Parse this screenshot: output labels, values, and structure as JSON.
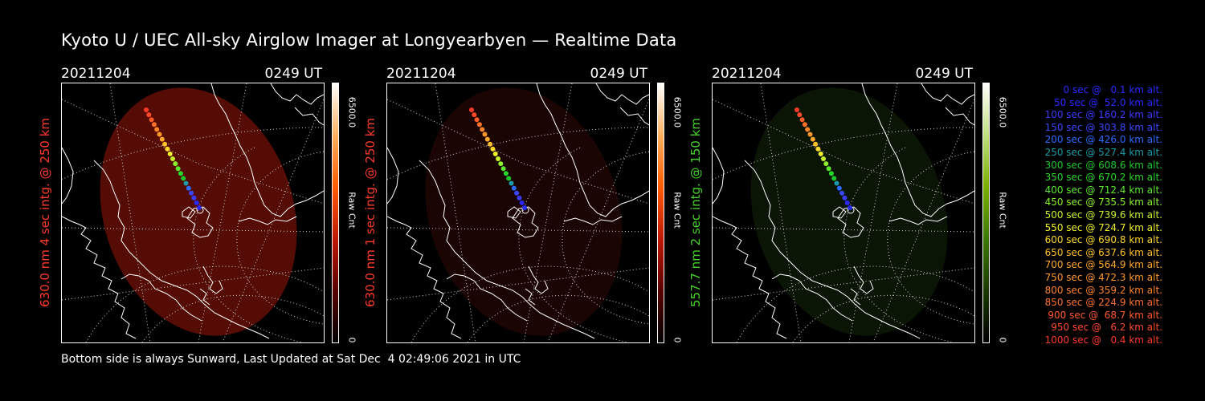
{
  "title": "Kyoto U / UEC All-sky Airglow Imager at Longyearbyen — Realtime Data",
  "panels": [
    {
      "date": "20211204",
      "time": "0249  UT",
      "side_label": "630.0 nm  4 sec intg. @ 250 km",
      "label_color": "#ff3a2a",
      "glow_color": "#5a0d05",
      "glow": "strong",
      "colorbar_gradient": [
        "#000000",
        "#5a0000",
        "#c01800",
        "#ff5a00",
        "#ffb060",
        "#ffffff"
      ],
      "colorbar_max": "6500.0",
      "colorbar_unit": "Raw Cnt",
      "colorbar_min": "0"
    },
    {
      "date": "20211204",
      "time": "0249  UT",
      "side_label": "630.0 nm  1 sec intg. @ 250 km",
      "label_color": "#ff3a2a",
      "glow_color": "#220604",
      "glow": "faint",
      "colorbar_gradient": [
        "#000000",
        "#5a0000",
        "#c01800",
        "#ff5a00",
        "#ffb060",
        "#ffffff"
      ],
      "colorbar_max": "6500.0",
      "colorbar_unit": "Raw Cnt",
      "colorbar_min": "0"
    },
    {
      "date": "20211204",
      "time": "0249  UT",
      "side_label": "557.7 nm  2 sec intg. @ 150 km",
      "label_color": "#46d22a",
      "glow_color": "#0c1a08",
      "glow": "faint",
      "colorbar_gradient": [
        "#000000",
        "#1a3a00",
        "#3c7a00",
        "#7ab000",
        "#c0e080",
        "#ffffff"
      ],
      "colorbar_max": "6500.0",
      "colorbar_unit": "Raw Cnt",
      "colorbar_min": "0"
    }
  ],
  "footer": "Bottom side is always Sunward, Last Updated at Sat Dec  4 02:49:06 2021 in UTC",
  "legend": [
    {
      "text": "0 sec @   0.1 km alt.",
      "color": "#2a2aff"
    },
    {
      "text": "50 sec @  52.0 km alt.",
      "color": "#2a2aff"
    },
    {
      "text": "100 sec @ 160.2 km alt.",
      "color": "#3a3aff"
    },
    {
      "text": "150 sec @ 303.8 km alt.",
      "color": "#3a46ff"
    },
    {
      "text": "200 sec @ 426.0 km alt.",
      "color": "#2a6aff"
    },
    {
      "text": "250 sec @ 527.4 km alt.",
      "color": "#1a9aa8"
    },
    {
      "text": "300 sec @ 608.6 km alt.",
      "color": "#1ac82a"
    },
    {
      "text": "350 sec @ 670.2 km alt.",
      "color": "#2ad82a"
    },
    {
      "text": "400 sec @ 712.4 km alt.",
      "color": "#5ae82a"
    },
    {
      "text": "450 sec @ 735.5 km alt.",
      "color": "#8af02a"
    },
    {
      "text": "500 sec @ 739.6 km alt.",
      "color": "#c8f02a"
    },
    {
      "text": "550 sec @ 724.7 km alt.",
      "color": "#f0f02a"
    },
    {
      "text": "600 sec @ 690.8 km alt.",
      "color": "#ffd82a"
    },
    {
      "text": "650 sec @ 637.6 km alt.",
      "color": "#ffc02a"
    },
    {
      "text": "700 sec @ 564.9 km alt.",
      "color": "#ffa82a"
    },
    {
      "text": "750 sec @ 472.3 km alt.",
      "color": "#ff962a"
    },
    {
      "text": "800 sec @ 359.2 km alt.",
      "color": "#ff842a"
    },
    {
      "text": "850 sec @ 224.9 km alt.",
      "color": "#ff702a"
    },
    {
      "text": "900 sec @  68.7 km alt.",
      "color": "#ff5a2a"
    },
    {
      "text": "950 sec @   6.2 km alt.",
      "color": "#ff4a2a"
    },
    {
      "text": "1000 sec @   0.4 km alt.",
      "color": "#ff3a2a"
    }
  ]
}
